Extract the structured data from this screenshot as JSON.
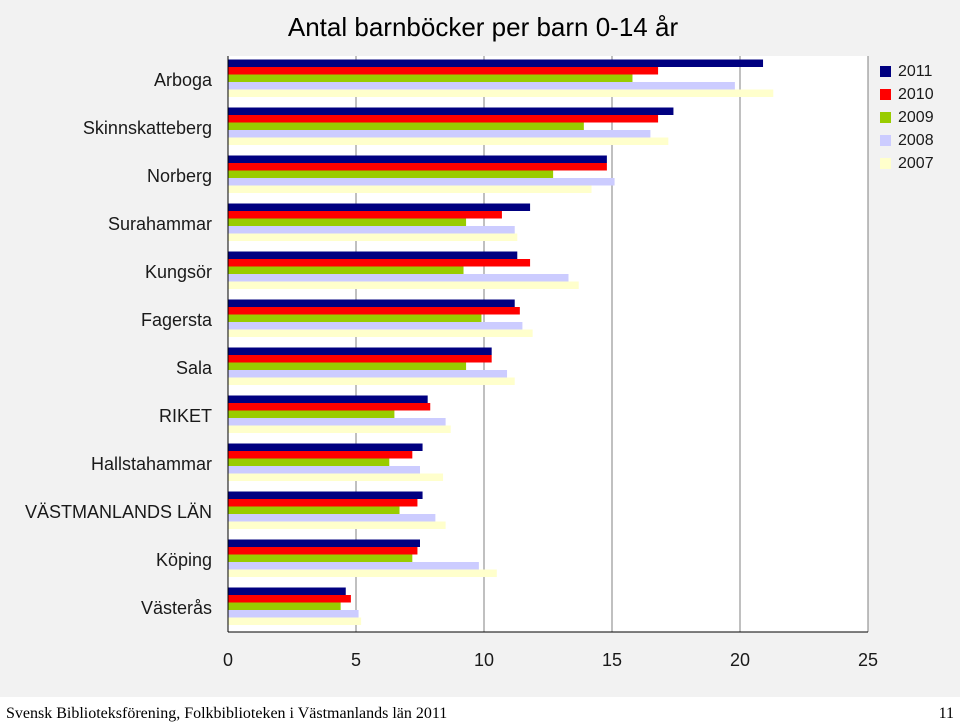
{
  "chart_data": {
    "type": "bar",
    "orientation": "horizontal",
    "title": "Antal barnböcker per barn 0-14 år",
    "xlabel": "",
    "ylabel": "",
    "xlim": [
      0,
      25
    ],
    "x_ticks": [
      0,
      5,
      10,
      15,
      20,
      25
    ],
    "grid": true,
    "legend_position": "top-right",
    "categories": [
      "Arboga",
      "Skinnskatteberg",
      "Norberg",
      "Surahammar",
      "Kungsör",
      "Fagersta",
      "Sala",
      "RIKET",
      "Hallstahammar",
      "VÄSTMANLANDS LÄN",
      "Köping",
      "Västerås"
    ],
    "series": [
      {
        "name": "2011",
        "color": "#000080",
        "values": [
          20.9,
          17.4,
          14.8,
          11.8,
          11.3,
          11.2,
          10.3,
          7.8,
          7.6,
          7.6,
          7.5,
          4.6
        ]
      },
      {
        "name": "2010",
        "color": "#ff0000",
        "values": [
          16.8,
          16.8,
          14.8,
          10.7,
          11.8,
          11.4,
          10.3,
          7.9,
          7.2,
          7.4,
          7.4,
          4.8
        ]
      },
      {
        "name": "2009",
        "color": "#99cc00",
        "values": [
          15.8,
          13.9,
          12.7,
          9.3,
          9.2,
          9.9,
          9.3,
          6.5,
          6.3,
          6.7,
          7.2,
          4.4
        ]
      },
      {
        "name": "2008",
        "color": "#ccccff",
        "values": [
          19.8,
          16.5,
          15.1,
          11.2,
          13.3,
          11.5,
          10.9,
          8.5,
          7.5,
          8.1,
          9.8,
          5.1
        ]
      },
      {
        "name": "2007",
        "color": "#ffffcc",
        "values": [
          21.3,
          17.2,
          14.2,
          11.3,
          13.7,
          11.9,
          11.2,
          8.7,
          8.4,
          8.5,
          10.5,
          5.2
        ]
      }
    ]
  },
  "footer": {
    "text": "Svensk Biblioteksförening, Folkbiblioteken i Västmanlands län 2011",
    "page_number": "11"
  }
}
